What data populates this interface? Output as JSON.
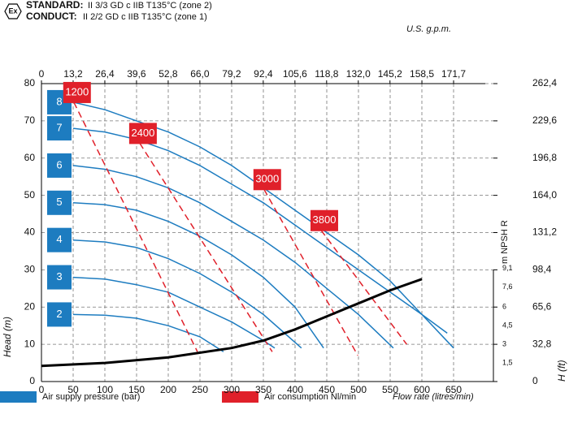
{
  "header": {
    "standard_label": "STANDARD:",
    "standard_text": "II 3/3 GD c IIB T135°C (zone 2)",
    "conduct_label": "CONDUCT:",
    "conduct_text": "II 2/2 GD c IIB T135°C (zone 1)",
    "symbol": "Ex"
  },
  "chart_data": {
    "type": "line",
    "xlabel": "Flow rate (litres/min)",
    "ylabel": "Head (m)",
    "x2label": "U.S. g.p.m.",
    "y2label": "H (ft)",
    "y3label": "m NPSH R",
    "xlim": [
      0,
      700
    ],
    "xticks": [
      0,
      50,
      100,
      150,
      200,
      250,
      300,
      350,
      400,
      450,
      500,
      550,
      600,
      650
    ],
    "x2lim": [
      0,
      184.9
    ],
    "x2ticks": [
      0,
      {
        "value": 13.2,
        "label": "13,2"
      },
      {
        "value": 26.4,
        "label": "26,4"
      },
      {
        "value": 39.6,
        "label": "39,6"
      },
      {
        "value": 52.8,
        "label": "52,8"
      },
      {
        "value": 66.0,
        "label": "66,0"
      },
      {
        "value": 79.2,
        "label": "79,2"
      },
      {
        "value": 92.4,
        "label": "92,4"
      },
      {
        "value": 105.6,
        "label": "105,6"
      },
      {
        "value": 118.8,
        "label": "118,8"
      },
      {
        "value": 132.0,
        "label": "132,0"
      },
      {
        "value": 145.2,
        "label": "145,2"
      },
      {
        "value": 158.5,
        "label": "158,5"
      },
      {
        "value": 171.7,
        "label": "171,7"
      }
    ],
    "ylim": [
      0,
      80
    ],
    "yticks": [
      0,
      10,
      20,
      30,
      40,
      50,
      60,
      70,
      80
    ],
    "y2lim": [
      0,
      262.4
    ],
    "y2ticks": [
      0,
      {
        "value": 32.8,
        "label": "32,8"
      },
      {
        "value": 65.6,
        "label": "65,6"
      },
      {
        "value": 98.4,
        "label": "98,4"
      },
      {
        "value": 131.2,
        "label": "131,2"
      },
      {
        "value": 164.0,
        "label": "164,0"
      },
      {
        "value": 196.8,
        "label": "196,8"
      },
      {
        "value": 229.6,
        "label": "229,6"
      },
      {
        "value": 262.4,
        "label": "262,4"
      }
    ],
    "y3lim": [
      0,
      24
    ],
    "y3ticks": [
      {
        "value": 1.5,
        "label": "1,5"
      },
      3,
      {
        "value": 4.5,
        "label": "4,5"
      },
      6,
      {
        "value": 7.6,
        "label": "7,6"
      },
      {
        "value": 9.1,
        "label": "9,1"
      }
    ],
    "grid": true,
    "pressure": {
      "legend": "Air supply pressure (bar)",
      "color": "#1d7cc0",
      "series": [
        {
          "name": "2",
          "x": [
            50,
            100,
            150,
            200,
            250,
            287
          ],
          "values": [
            18,
            17.8,
            17,
            15,
            12,
            8
          ]
        },
        {
          "name": "3",
          "x": [
            50,
            100,
            150,
            200,
            250,
            300,
            350,
            368
          ],
          "values": [
            28,
            27.5,
            26,
            24,
            20,
            16,
            11,
            9
          ]
        },
        {
          "name": "4",
          "x": [
            50,
            100,
            150,
            200,
            250,
            300,
            350,
            410
          ],
          "values": [
            38,
            37.5,
            36,
            33,
            29,
            24,
            18,
            9
          ]
        },
        {
          "name": "5",
          "x": [
            50,
            100,
            150,
            200,
            250,
            300,
            350,
            400,
            445
          ],
          "values": [
            48,
            47.5,
            46,
            43,
            39,
            34,
            28,
            20,
            9
          ]
        },
        {
          "name": "6",
          "x": [
            50,
            100,
            150,
            200,
            250,
            300,
            350,
            400,
            450,
            500,
            555
          ],
          "values": [
            58,
            57,
            55,
            52,
            48,
            43,
            38,
            32,
            25,
            18,
            9
          ]
        },
        {
          "name": "7",
          "x": [
            50,
            100,
            150,
            200,
            250,
            300,
            350,
            400,
            450,
            500,
            550,
            600,
            640
          ],
          "values": [
            68,
            67,
            65,
            62,
            58,
            53,
            48,
            42,
            36,
            30,
            24,
            18,
            13
          ]
        },
        {
          "name": "8",
          "x": [
            50,
            100,
            150,
            200,
            250,
            300,
            350,
            400,
            450,
            500,
            550,
            600,
            650
          ],
          "values": [
            75,
            73,
            70,
            67,
            63,
            58,
            52,
            46,
            40,
            34,
            27,
            18,
            9
          ]
        }
      ]
    },
    "air": {
      "legend": "Air consumption Nl/min",
      "color": "#e0202a",
      "series": [
        {
          "name": "1200",
          "x": [
            51,
            246
          ],
          "values": [
            75,
            8
          ]
        },
        {
          "name": "2400",
          "x": [
            155,
            364
          ],
          "values": [
            64,
            8
          ]
        },
        {
          "name": "3000",
          "x": [
            351,
            499
          ],
          "values": [
            51.6,
            7
          ]
        },
        {
          "name": "3800",
          "x": [
            441,
            576
          ],
          "values": [
            40.6,
            10
          ]
        }
      ]
    },
    "npsh": {
      "color": "#000000",
      "axis": "y3",
      "x": [
        0,
        100,
        200,
        300,
        350,
        400,
        450,
        500,
        550,
        600
      ],
      "values": [
        1.26,
        1.5,
        1.95,
        2.7,
        3.3,
        4.2,
        5.25,
        6.3,
        7.35,
        8.25
      ]
    }
  }
}
